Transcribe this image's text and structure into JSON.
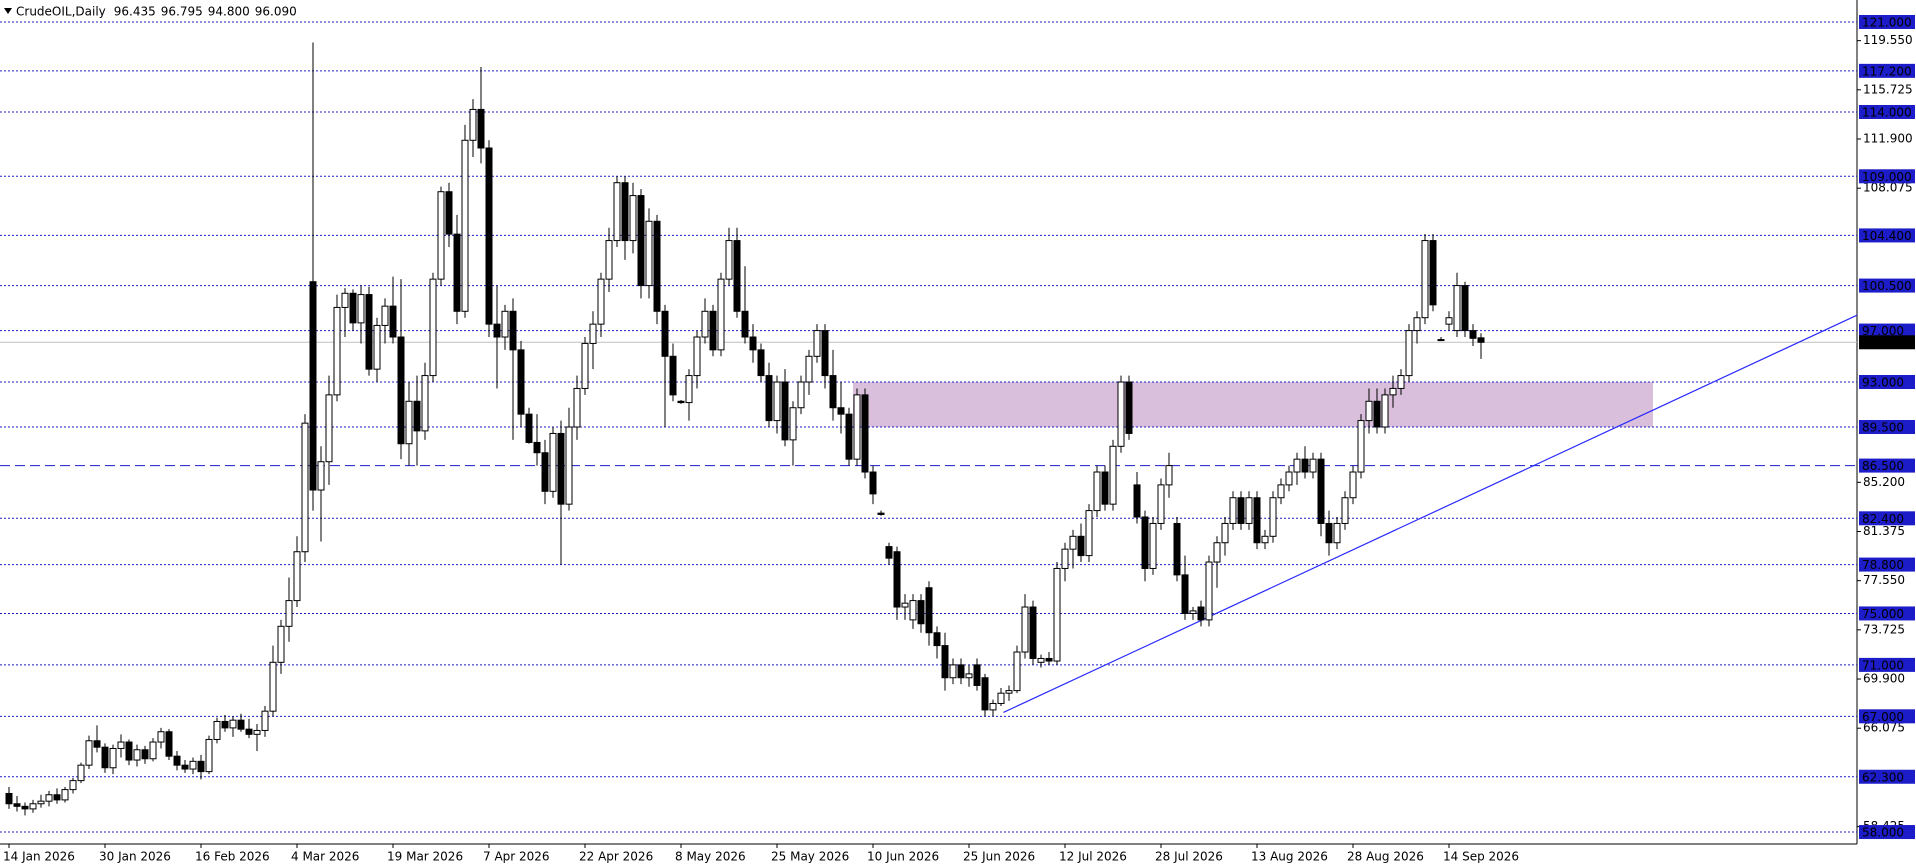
{
  "chart_data": {
    "type": "candlestick",
    "title": "CrudeOIL,Daily",
    "header_ohlc": [
      96.435,
      96.795,
      {
        "value": 94.8,
        "label": "94.800"
      },
      {
        "value": 96.09,
        "label": "96.090"
      }
    ],
    "categories": [
      "14 Jan 2026",
      null,
      null,
      null,
      null,
      null,
      null,
      null,
      null,
      null,
      null,
      null,
      "30 Jan 2026",
      null,
      null,
      null,
      null,
      null,
      null,
      null,
      null,
      null,
      null,
      null,
      "16 Feb 2026",
      null,
      null,
      null,
      null,
      null,
      null,
      null,
      null,
      null,
      null,
      null,
      "4 Mar 2026",
      null,
      null,
      null,
      null,
      null,
      null,
      null,
      null,
      null,
      null,
      null,
      "19 Mar 2026",
      null,
      null,
      null,
      null,
      null,
      null,
      null,
      null,
      null,
      null,
      null,
      "7 Apr 2026",
      null,
      null,
      null,
      null,
      null,
      null,
      null,
      null,
      null,
      null,
      null,
      "22 Apr 2026",
      null,
      null,
      null,
      null,
      null,
      null,
      null,
      null,
      null,
      null,
      null,
      "8 May 2026",
      null,
      null,
      null,
      null,
      null,
      null,
      null,
      null,
      null,
      null,
      null,
      "25 May 2026",
      null,
      null,
      null,
      null,
      null,
      null,
      null,
      null,
      null,
      null,
      null,
      "10 Jun 2026",
      null,
      null,
      null,
      null,
      null,
      null,
      null,
      null,
      null,
      null,
      null,
      "25 Jun 2026",
      null,
      null,
      null,
      null,
      null,
      null,
      null,
      null,
      null,
      null,
      null,
      "12 Jul 2026",
      null,
      null,
      null,
      null,
      null,
      null,
      null,
      null,
      null,
      null,
      null,
      "28 Jul 2026",
      null,
      null,
      null,
      null,
      null,
      null,
      null,
      null,
      null,
      null,
      null,
      "13 Aug 2026",
      null,
      null,
      null,
      null,
      null,
      null,
      null,
      null,
      null,
      null,
      null,
      "28 Aug 2026",
      null,
      null,
      null,
      null,
      null,
      null,
      null,
      null,
      null,
      null,
      null,
      "14 Sep 2026",
      null,
      null,
      null,
      null
    ],
    "candles": [
      [
        61,
        61.5,
        59.8,
        60.2
      ],
      [
        60.2,
        60.8,
        59.6,
        60
      ],
      [
        60,
        60.3,
        59.3,
        59.8
      ],
      [
        59.8,
        60.5,
        59.5,
        60.2
      ],
      [
        60.2,
        60.9,
        59.9,
        60.4
      ],
      [
        60.4,
        61.2,
        60,
        60.9
      ],
      [
        60.9,
        61.4,
        60.2,
        60.5
      ],
      [
        60.5,
        61.5,
        60.3,
        61.3
      ],
      [
        61.3,
        62.2,
        61,
        62
      ],
      [
        62,
        63.4,
        61.8,
        63.2
      ],
      [
        63.2,
        65.5,
        62.9,
        65.1
      ],
      [
        65.1,
        66.3,
        64.2,
        64.6
      ],
      [
        64.6,
        64.9,
        62.6,
        63
      ],
      [
        63,
        64.8,
        62.5,
        64.5
      ],
      [
        64.5,
        65.6,
        63.8,
        65
      ],
      [
        65,
        65.2,
        63.2,
        63.6
      ],
      [
        63.6,
        64.8,
        63.1,
        64.4
      ],
      [
        64.4,
        64.7,
        63.3,
        63.7
      ],
      [
        63.7,
        65.3,
        63.5,
        65
      ],
      [
        65,
        66.1,
        64.5,
        65.8
      ],
      [
        65.8,
        66,
        63.6,
        63.9
      ],
      [
        63.9,
        64.3,
        62.8,
        63.2
      ],
      [
        63.2,
        63.6,
        62.6,
        62.9
      ],
      [
        62.9,
        63.8,
        62.5,
        63.5
      ],
      [
        63.5,
        64,
        62.1,
        62.7
      ],
      [
        62.7,
        65.5,
        62.5,
        65.2
      ],
      [
        65.2,
        66.9,
        64.9,
        66.6
      ],
      [
        66.6,
        67.1,
        65.8,
        66.1
      ],
      [
        66.1,
        67,
        65.4,
        66.7
      ],
      [
        66.7,
        67.2,
        65.8,
        66
      ],
      [
        66,
        66.8,
        65.3,
        65.6
      ],
      [
        65.6,
        66.4,
        64.3,
        65.9
      ],
      [
        65.9,
        67.8,
        65.4,
        67.4
      ],
      [
        67.4,
        72.5,
        67,
        71.2
      ],
      [
        71.2,
        74.5,
        70.3,
        74
      ],
      [
        74,
        77.8,
        72.8,
        76
      ],
      [
        76,
        81,
        75.5,
        79.8
      ],
      [
        79.8,
        90.5,
        79,
        89.8
      ],
      [
        100.8,
        119.4,
        83,
        84.6
      ],
      [
        84.6,
        88,
        80.6,
        86.8
      ],
      [
        86.8,
        93.5,
        85,
        92
      ],
      [
        92,
        99.8,
        91.5,
        98.8
      ],
      [
        98.8,
        100.3,
        96.5,
        99.9
      ],
      [
        99.9,
        100.2,
        97,
        97.6
      ],
      [
        97.6,
        100.5,
        96,
        99.8
      ],
      [
        99.8,
        100.4,
        93.5,
        94
      ],
      [
        94,
        98,
        93,
        97.4
      ],
      [
        97.4,
        99.5,
        96,
        98.9
      ],
      [
        98.9,
        101.2,
        96,
        96.5
      ],
      [
        96.5,
        101,
        87,
        88.2
      ],
      [
        88.2,
        93,
        86.5,
        91.5
      ],
      [
        91.5,
        93.5,
        86.5,
        89.2
      ],
      [
        89.2,
        94.5,
        88.5,
        93.5
      ],
      [
        93.5,
        101.5,
        93,
        101
      ],
      [
        101,
        108.2,
        100.5,
        107.8
      ],
      [
        107.8,
        108.5,
        103.5,
        104.5
      ],
      [
        104.5,
        106,
        97.5,
        98.5
      ],
      [
        98.5,
        113,
        98,
        111.8
      ],
      [
        111.8,
        115,
        110.5,
        114.2
      ],
      [
        114.2,
        117.5,
        110,
        111.2
      ],
      [
        111.2,
        111.8,
        96.5,
        97.5
      ],
      [
        97.5,
        100.5,
        92.5,
        96.5
      ],
      [
        96.5,
        99,
        95.5,
        98.5
      ],
      [
        98.5,
        99.5,
        88.5,
        95.5
      ],
      [
        95.5,
        96.2,
        89.5,
        90.5
      ],
      [
        90.5,
        91,
        88.2,
        88.3
      ],
      [
        88.3,
        90.5,
        86.5,
        87.5
      ],
      [
        87.5,
        88.5,
        83.5,
        84.5
      ],
      [
        84.5,
        89.5,
        84,
        89
      ],
      [
        89,
        90,
        78.8,
        83.5
      ],
      [
        83.5,
        91,
        83,
        89.5
      ],
      [
        89.5,
        93.5,
        88.5,
        92.5
      ],
      [
        92.5,
        96.5,
        92,
        96
      ],
      [
        96,
        98.5,
        94,
        97.5
      ],
      [
        97.5,
        101.5,
        96.5,
        101
      ],
      [
        101,
        105,
        100,
        104
      ],
      [
        104,
        109,
        103.5,
        108.5
      ],
      [
        108.5,
        109,
        102.5,
        104
      ],
      [
        104,
        108.5,
        103,
        107.5
      ],
      [
        107.5,
        108,
        99.5,
        100.5
      ],
      [
        100.5,
        106.5,
        99.5,
        105.5
      ],
      [
        105.5,
        106,
        97.5,
        98.5
      ],
      [
        98.5,
        99,
        89.5,
        95
      ],
      [
        95,
        96,
        91.5,
        92
      ],
      [
        91.5,
        91.6,
        91.3,
        91.4
      ],
      [
        91.4,
        94,
        90,
        93.5
      ],
      [
        93.5,
        97,
        92.5,
        96.5
      ],
      [
        96.5,
        99.5,
        96,
        98.5
      ],
      [
        98.5,
        99,
        95,
        95.5
      ],
      [
        95.5,
        101.5,
        95,
        101
      ],
      [
        101,
        105,
        100.5,
        104
      ],
      [
        104,
        105,
        98,
        98.5
      ],
      [
        98.5,
        102,
        96,
        96.5
      ],
      [
        96.5,
        97.5,
        94.5,
        95.5
      ],
      [
        95.5,
        96,
        93,
        93.5
      ],
      [
        93.5,
        94.5,
        89.5,
        90
      ],
      [
        90,
        93.5,
        89,
        93
      ],
      [
        93,
        94,
        88,
        88.5
      ],
      [
        88.5,
        91.5,
        86.5,
        91
      ],
      [
        91,
        93.5,
        90.5,
        93
      ],
      [
        93,
        95.5,
        92,
        95
      ],
      [
        95,
        97.5,
        94.5,
        97
      ],
      [
        97,
        97.5,
        92.5,
        93.5
      ],
      [
        93.5,
        95.5,
        90,
        91
      ],
      [
        91,
        93,
        89,
        90.5
      ],
      [
        90.5,
        91,
        86.5,
        87
      ],
      [
        87,
        92.5,
        86.5,
        92
      ],
      [
        92,
        92.5,
        85.5,
        86
      ],
      [
        86,
        86.5,
        83.5,
        84.3
      ],
      [
        82.8,
        83,
        82.6,
        82.7
      ],
      [
        80.2,
        80.5,
        78.8,
        79.3
      ],
      [
        79.8,
        80.2,
        74.5,
        75.5
      ],
      [
        75.5,
        76.5,
        74.5,
        75.8
      ],
      [
        74.5,
        76.5,
        73.8,
        76
      ],
      [
        76,
        76.5,
        73.5,
        74.2
      ],
      [
        77,
        77.5,
        72.5,
        73.5
      ],
      [
        73.5,
        74,
        71.5,
        72.5
      ],
      [
        72.5,
        73.5,
        69,
        70
      ],
      [
        70,
        71.5,
        69.5,
        71
      ],
      [
        71,
        71.5,
        69.5,
        70
      ],
      [
        70,
        71,
        69.3,
        70.3
      ],
      [
        71,
        71.5,
        69,
        69.4
      ],
      [
        70,
        70.3,
        67,
        67.5
      ],
      [
        67.5,
        68.3,
        67,
        68
      ],
      [
        68,
        69.2,
        67.8,
        68.8
      ],
      [
        68.8,
        69.4,
        68.2,
        69
      ],
      [
        69,
        72.5,
        68.8,
        72
      ],
      [
        72,
        76.5,
        71.5,
        75.5
      ],
      [
        75.5,
        76,
        71,
        71.5
      ],
      [
        71.2,
        71.8,
        70.8,
        71.5
      ],
      [
        71.5,
        72,
        71,
        71.3
      ],
      [
        71.3,
        79,
        71,
        78.5
      ],
      [
        78.5,
        80.5,
        77.5,
        80
      ],
      [
        80,
        81.5,
        78.5,
        81
      ],
      [
        81,
        82,
        79,
        79.5
      ],
      [
        79.5,
        83.5,
        79,
        83
      ],
      [
        83,
        86.5,
        82.5,
        86
      ],
      [
        86,
        86.5,
        83,
        83.5
      ],
      [
        83.5,
        88.5,
        83,
        88
      ],
      [
        88,
        93.5,
        87.5,
        93
      ],
      [
        93,
        93.5,
        88.5,
        89
      ],
      [
        85,
        86,
        82,
        82.5
      ],
      [
        82.5,
        83,
        77.5,
        78.5
      ],
      [
        78.5,
        82.5,
        78,
        82
      ],
      [
        82,
        85.5,
        81.5,
        85
      ],
      [
        85,
        87.5,
        84,
        86.5
      ],
      [
        82,
        82.5,
        77.5,
        78
      ],
      [
        78,
        79.5,
        74.5,
        75
      ],
      [
        75,
        75.5,
        74.5,
        75.2
      ],
      [
        75.5,
        76,
        74,
        74.5
      ],
      [
        74.5,
        79.5,
        74,
        79
      ],
      [
        79,
        81,
        77,
        80.5
      ],
      [
        80.5,
        82.5,
        79.5,
        82
      ],
      [
        82,
        84.5,
        81.5,
        84
      ],
      [
        84,
        84.5,
        81.5,
        82
      ],
      [
        82,
        84.5,
        81.5,
        84
      ],
      [
        84,
        84.5,
        80,
        80.5
      ],
      [
        80.5,
        81.5,
        80,
        81
      ],
      [
        81,
        84.5,
        80.5,
        84
      ],
      [
        84,
        85.5,
        83.5,
        85
      ],
      [
        85,
        86.5,
        84.5,
        86
      ],
      [
        86,
        87.5,
        85,
        87
      ],
      [
        87,
        88,
        85.5,
        86
      ],
      [
        86,
        87.5,
        85.5,
        87
      ],
      [
        87,
        87.5,
        81,
        82
      ],
      [
        82,
        83,
        79.5,
        80.5
      ],
      [
        80.5,
        82.5,
        80,
        82
      ],
      [
        82,
        84.5,
        81.5,
        84
      ],
      [
        84,
        86.5,
        83.5,
        86
      ],
      [
        86,
        90.5,
        85.5,
        90
      ],
      [
        90,
        92.5,
        89,
        91.5
      ],
      [
        91.5,
        92.5,
        89,
        89.5
      ],
      [
        89.5,
        92.5,
        89,
        92
      ],
      [
        92,
        93.5,
        91,
        92.5
      ],
      [
        92.5,
        94,
        92,
        93.5
      ],
      [
        93.5,
        97.5,
        93,
        97
      ],
      [
        97,
        98.5,
        96,
        98
      ],
      [
        98,
        104.5,
        97.5,
        104
      ],
      [
        104,
        104.5,
        98.5,
        99
      ],
      [
        96.3,
        96.5,
        96.2,
        96.3
      ],
      [
        97.5,
        98.5,
        97,
        98
      ],
      [
        97,
        101.5,
        96.5,
        100.5
      ],
      [
        100.5,
        100.8,
        96.5,
        97
      ],
      [
        97,
        97.5,
        95.8,
        96.4
      ],
      [
        96.435,
        96.795,
        94.8,
        96.09
      ]
    ],
    "ylim": [
      57.07,
      122.71
    ],
    "yticks": [
      {
        "value": 119.55,
        "label": "119.550"
      },
      {
        "value": 115.725,
        "label": "115.725"
      },
      {
        "value": 111.9,
        "label": "111.900"
      },
      {
        "value": 108.075,
        "label": "108.075"
      },
      {
        "value": 85.2,
        "label": "85.200"
      },
      {
        "value": 81.375,
        "label": "81.375"
      },
      {
        "value": 77.55,
        "label": "77.550"
      },
      {
        "value": 73.725,
        "label": "73.725"
      },
      {
        "value": 69.9,
        "label": "69.900"
      },
      {
        "value": 66.075,
        "label": "66.075"
      },
      {
        "value": 58.425,
        "label": "58.425"
      }
    ],
    "levels": [
      {
        "value": 121,
        "label": "121.000"
      },
      {
        "value": 117.2,
        "label": "117.200"
      },
      {
        "value": 114,
        "label": "114.000"
      },
      {
        "value": 109,
        "label": "109.000"
      },
      {
        "value": 104.4,
        "label": "104.400"
      },
      {
        "value": 100.5,
        "label": "100.500"
      },
      {
        "value": 97,
        "label": "97.000"
      },
      {
        "value": 93,
        "label": "93.000"
      },
      {
        "value": 89.5,
        "label": "89.500"
      },
      {
        "value": 82.4,
        "label": "82.400"
      },
      {
        "value": 78.8,
        "label": "78.800"
      },
      {
        "value": 75,
        "label": "75.000"
      },
      {
        "value": 71,
        "label": "71.000"
      },
      {
        "value": 67,
        "label": "67.000"
      },
      {
        "value": 62.3,
        "label": "62.300"
      },
      {
        "value": 58,
        "label": "58.000"
      }
    ],
    "support_line": {
      "value": 86.5,
      "label": "86.500"
    },
    "last_price": {
      "value": 96.09,
      "label": "96.090"
    },
    "zone": {
      "x": [
        105.5,
        205.5
      ],
      "y": [
        89.5,
        93
      ]
    },
    "trend_line": {
      "x": [
        124.3,
        231
      ],
      "y": [
        67.3,
        98.2
      ]
    },
    "level_color": "#1c1cc8",
    "zone_color": "#d9bfdb",
    "trend_color": "#2a2aff",
    "last_price_color": "#c0c0c0"
  }
}
